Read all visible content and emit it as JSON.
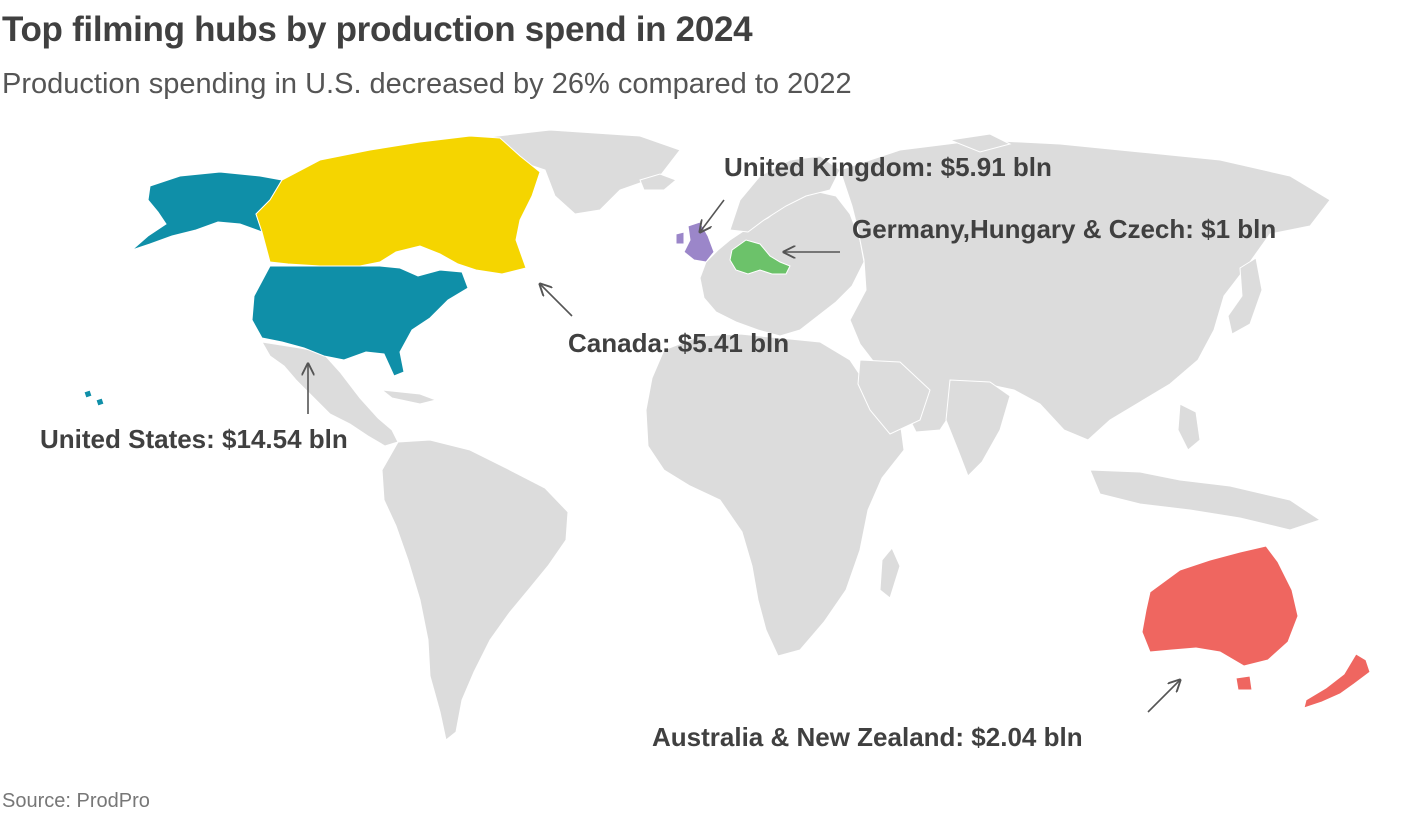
{
  "header": {
    "title": "Top filming hubs by production spend in 2024",
    "subtitle": "Production spending in U.S. decreased by 26% compared to 2022"
  },
  "footer": {
    "source": "Source: ProdPro"
  },
  "colors": {
    "land": "#dcdcdc",
    "border": "#ffffff",
    "united_states": "#0f8fa8",
    "canada": "#f5d500",
    "united_kingdom": "#9b86c9",
    "central_europe": "#6cc26a",
    "australia_nz": "#ef6660",
    "arrow": "#555555"
  },
  "map": {
    "labels": {
      "united_states": "United States: $14.54 bln",
      "canada": "Canada: $5.41 bln",
      "united_kingdom": "United Kingdom: $5.91 bln",
      "central_europe": "Germany,Hungary & Czech: $1 bln",
      "australia_nz": "Australia & New Zealand: $2.04 bln"
    }
  }
}
